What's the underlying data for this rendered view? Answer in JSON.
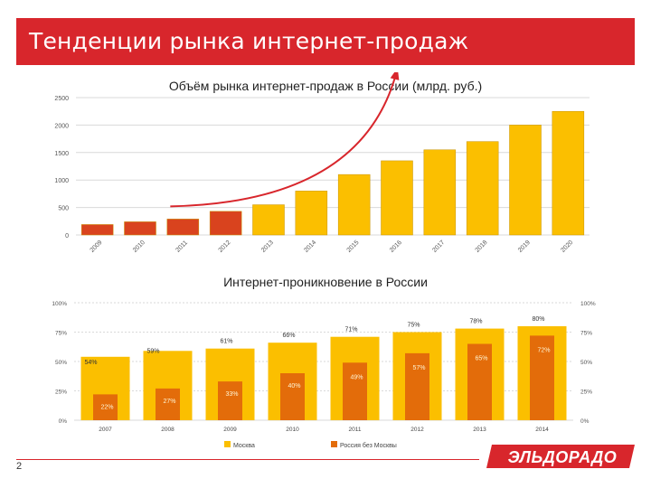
{
  "slide": {
    "title": "Тенденции рынка интернет-продаж",
    "page_number": "2",
    "logo_text": "ЭЛЬДОРАДО"
  },
  "colors": {
    "accent": "#d8262c",
    "bar_main": "#fbbf00",
    "bar_early": "#d9431e",
    "bar_inner": "#e36c0a",
    "grid": "#d9d9d9"
  },
  "chart_data": [
    {
      "type": "bar",
      "title": "Объём рынка интернет-продаж в России (млрд. руб.)",
      "categories": [
        "2009",
        "2010",
        "2011",
        "2012",
        "2013",
        "2014",
        "2015",
        "2016",
        "2017",
        "2018",
        "2019",
        "2020"
      ],
      "values": [
        190,
        240,
        290,
        430,
        550,
        800,
        1100,
        1350,
        1550,
        1700,
        2000,
        2250
      ],
      "ylim": [
        0,
        2500
      ],
      "yticks": [
        0,
        500,
        1000,
        1500,
        2000,
        2500
      ],
      "grid": true,
      "annotation": "trend-arrow"
    },
    {
      "type": "bar",
      "title": "Интернет-проникновение в России",
      "categories": [
        "2007",
        "2008",
        "2009",
        "2010",
        "2011",
        "2012",
        "2013",
        "2014"
      ],
      "series": [
        {
          "name": "Москва",
          "values": [
            54,
            59,
            61,
            66,
            71,
            75,
            78,
            80
          ],
          "labels": [
            "54%",
            "59%",
            "61%",
            "66%",
            "71%",
            "75%",
            "78%",
            "80%"
          ]
        },
        {
          "name": "Россия без Москвы",
          "values": [
            22,
            27,
            33,
            40,
            49,
            57,
            65,
            72
          ],
          "labels": [
            "22%",
            "27%",
            "33%",
            "40%",
            "49%",
            "57%",
            "65%",
            "72%"
          ]
        }
      ],
      "ylim": [
        0,
        100
      ],
      "yticks": [
        "0%",
        "25%",
        "50%",
        "75%",
        "100%"
      ],
      "legend": "bottom"
    }
  ]
}
